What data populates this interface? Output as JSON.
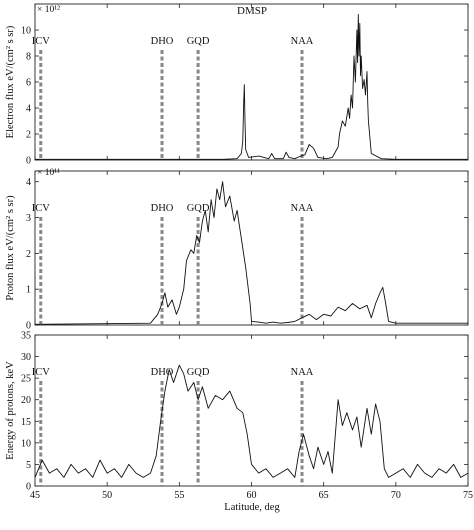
{
  "figure": {
    "title": "DMSP"
  },
  "x_axis": {
    "label": "Latitude, deg",
    "range": [
      45,
      75
    ],
    "ticks": [
      45,
      50,
      55,
      60,
      65,
      70,
      75
    ]
  },
  "stations": [
    {
      "name": "ICV",
      "lat": 45.4
    },
    {
      "name": "DHO",
      "lat": 53.8
    },
    {
      "name": "GQD",
      "lat": 56.3
    },
    {
      "name": "NAA",
      "lat": 63.5
    }
  ],
  "chart_data": [
    {
      "type": "line",
      "title": "DMSP",
      "xlabel": "Latitude, deg",
      "ylabel": "Electron flux eV/(cm² s sr)",
      "exponent_label": "× 10¹²",
      "xlim": [
        45,
        75
      ],
      "ylim": [
        0,
        12
      ],
      "yticks": [
        0,
        2,
        4,
        6,
        8,
        10
      ],
      "x": [
        45.0,
        56.0,
        58.0,
        59.0,
        59.3,
        59.4,
        59.45,
        59.5,
        59.55,
        59.6,
        59.8,
        60.5,
        61.2,
        61.4,
        61.6,
        62.2,
        62.4,
        62.6,
        63.0,
        63.4,
        63.7,
        64.0,
        64.3,
        64.6,
        65.2,
        65.6,
        66.0,
        66.1,
        66.3,
        66.5,
        66.7,
        66.8,
        66.9,
        67.0,
        67.1,
        67.2,
        67.3,
        67.35,
        67.4,
        67.45,
        67.5,
        67.55,
        67.6,
        67.7,
        67.8,
        67.9,
        68.0,
        68.05,
        68.1,
        68.3,
        69.0,
        70.0,
        75.0
      ],
      "y": [
        0.05,
        0.05,
        0.05,
        0.1,
        0.5,
        1.5,
        4.2,
        5.8,
        3.0,
        0.8,
        0.2,
        0.3,
        0.1,
        0.5,
        0.1,
        0.1,
        0.6,
        0.2,
        0.1,
        0.3,
        0.4,
        1.2,
        0.9,
        0.2,
        0.1,
        0.2,
        1.0,
        2.0,
        3.0,
        2.6,
        4.0,
        3.2,
        5.0,
        4.0,
        8.0,
        6.0,
        10.0,
        7.5,
        11.2,
        8.0,
        10.5,
        6.5,
        8.0,
        5.5,
        6.2,
        5.0,
        6.8,
        4.5,
        3.0,
        0.5,
        0.1,
        0.05,
        0.05
      ]
    },
    {
      "type": "line",
      "ylabel": "Proton flux eV/(cm² s sr)",
      "exponent_label": "× 10¹¹",
      "xlim": [
        45,
        75
      ],
      "ylim": [
        0,
        4.3
      ],
      "yticks": [
        0,
        1,
        2,
        3,
        4
      ],
      "x": [
        45.0,
        53.0,
        53.5,
        53.8,
        54.0,
        54.2,
        54.5,
        54.8,
        55.0,
        55.3,
        55.5,
        55.8,
        56.0,
        56.2,
        56.4,
        56.6,
        56.8,
        57.0,
        57.2,
        57.4,
        57.6,
        57.8,
        58.0,
        58.2,
        58.5,
        58.8,
        59.0,
        59.3,
        59.6,
        59.9,
        60.0,
        60.5,
        61.0,
        61.5,
        62.0,
        62.5,
        63.0,
        63.5,
        64.0,
        64.5,
        65.0,
        65.5,
        66.0,
        66.5,
        67.0,
        67.5,
        68.0,
        68.3,
        68.6,
        68.9,
        69.1,
        69.3,
        69.5,
        70.0,
        72.0,
        75.0
      ],
      "y": [
        0.02,
        0.05,
        0.3,
        0.6,
        0.9,
        0.5,
        0.7,
        0.3,
        0.5,
        1.0,
        1.8,
        2.1,
        2.0,
        2.5,
        2.3,
        2.9,
        3.2,
        2.6,
        3.5,
        3.0,
        3.8,
        3.5,
        4.0,
        3.3,
        3.6,
        2.9,
        3.2,
        2.4,
        1.6,
        0.6,
        0.1,
        0.08,
        0.05,
        0.08,
        0.05,
        0.07,
        0.1,
        0.2,
        0.3,
        0.15,
        0.3,
        0.25,
        0.5,
        0.4,
        0.6,
        0.45,
        0.55,
        0.2,
        0.6,
        0.9,
        1.05,
        0.6,
        0.1,
        0.05,
        0.05,
        0.05
      ]
    },
    {
      "type": "line",
      "ylabel": "Energy of protons, keV",
      "xlim": [
        45,
        75
      ],
      "ylim": [
        0,
        35
      ],
      "yticks": [
        0,
        5,
        10,
        15,
        20,
        25,
        30,
        35
      ],
      "x": [
        45.0,
        45.5,
        46.0,
        46.5,
        47.0,
        47.5,
        48.0,
        48.5,
        49.0,
        49.5,
        50.0,
        50.5,
        51.0,
        51.5,
        52.0,
        52.5,
        53.0,
        53.4,
        53.7,
        54.0,
        54.3,
        54.6,
        55.0,
        55.3,
        55.6,
        56.0,
        56.3,
        56.6,
        57.0,
        57.5,
        58.0,
        58.5,
        59.0,
        59.4,
        59.7,
        60.0,
        60.5,
        61.0,
        61.5,
        62.0,
        62.5,
        63.0,
        63.3,
        63.6,
        64.0,
        64.3,
        64.6,
        65.0,
        65.3,
        65.6,
        66.0,
        66.3,
        66.6,
        67.0,
        67.3,
        67.6,
        68.0,
        68.3,
        68.6,
        68.9,
        69.2,
        69.5,
        70.0,
        70.5,
        71.0,
        71.5,
        72.0,
        72.5,
        73.0,
        73.5,
        74.0,
        74.5,
        75.0
      ],
      "y": [
        2,
        6,
        3,
        4,
        2,
        5,
        3,
        4,
        2,
        6,
        3,
        4,
        2,
        5,
        3,
        2,
        3,
        7,
        15,
        22,
        27,
        24,
        28,
        26,
        22,
        24,
        20,
        23,
        18,
        21,
        20,
        22,
        18,
        17,
        12,
        5,
        3,
        4,
        2,
        3,
        4,
        2,
        8,
        12,
        7,
        4,
        9,
        5,
        8,
        3,
        20,
        14,
        17,
        13,
        16,
        9,
        18,
        12,
        19,
        15,
        4,
        2,
        3,
        4,
        2,
        5,
        3,
        2,
        4,
        3,
        5,
        2,
        3
      ]
    }
  ]
}
